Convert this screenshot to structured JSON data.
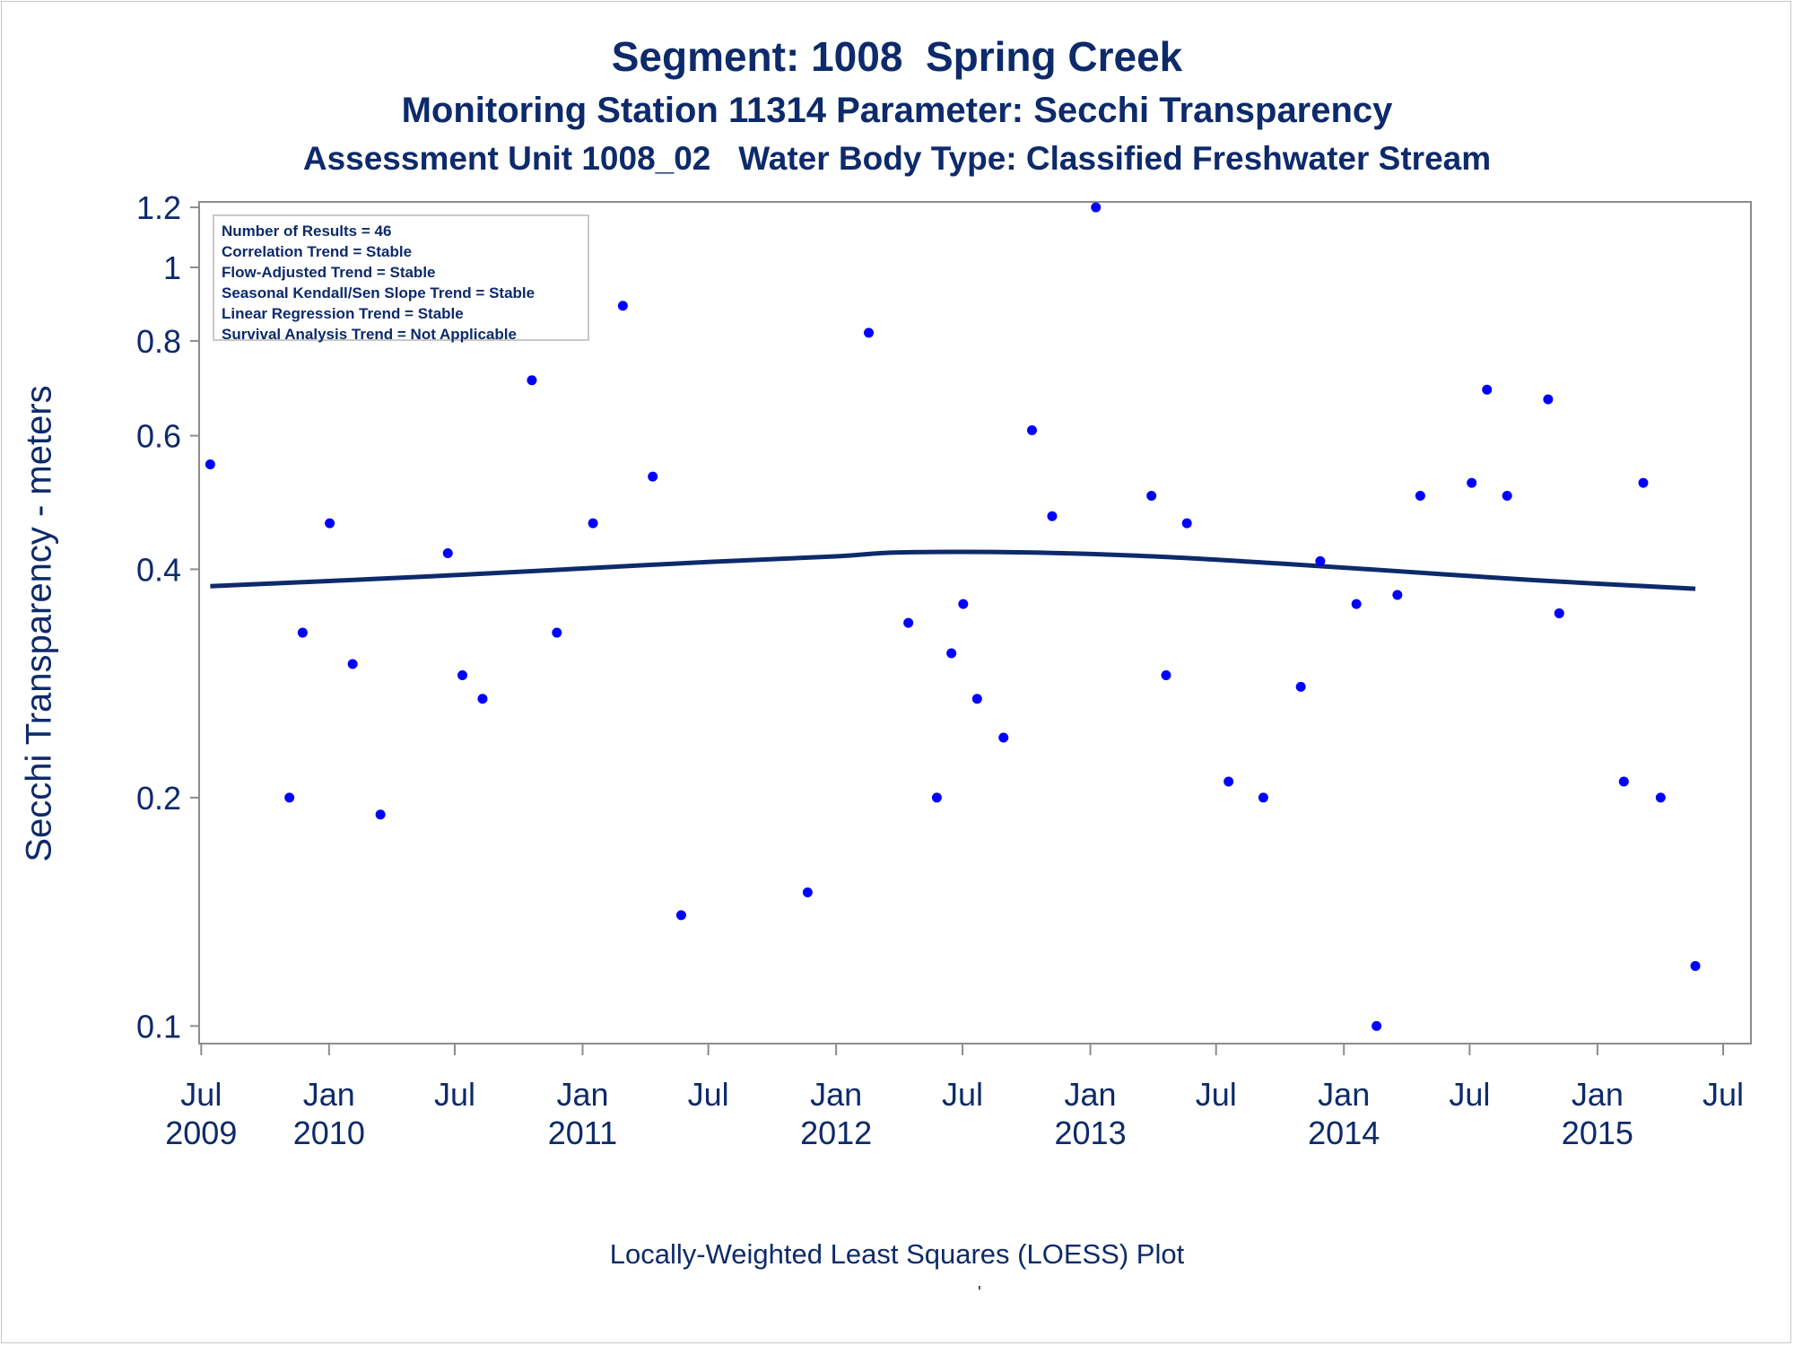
{
  "titles": {
    "line1": "Segment: 1008  Spring Creek",
    "line2": "Monitoring Station 11314 Parameter: Secchi Transparency",
    "line3": "Assessment Unit 1008_02   Water Body Type: Classified Freshwater Stream"
  },
  "footnote": "Locally-Weighted Least Squares (LOESS) Plot",
  "footnote_mark": "'",
  "stats": [
    "Number of Results = 46",
    "Correlation Trend = Stable",
    "Flow-Adjusted Trend = Stable",
    "Seasonal Kendall/Sen Slope Trend = Stable",
    "Linear Regression Trend = Stable",
    "Survival Analysis Trend = Not Applicable"
  ],
  "colors": {
    "text": "#0d2a6b",
    "points": "#0000ff",
    "loess": "#0d2a6b",
    "axis": "#8c8c8c"
  },
  "chart_data": {
    "type": "scatter",
    "ylabel": "Secchi Transparency - meters",
    "yscale": "log",
    "ylim": [
      0.0948,
      1.22
    ],
    "xlim": [
      "2009-06-28",
      "2015-08-10"
    ],
    "yticks": [
      0.1,
      0.2,
      0.4,
      0.6,
      0.8,
      1,
      1.2
    ],
    "ytick_labels": [
      "0.1",
      "0.2",
      "0.4",
      "0.6",
      "0.8",
      "1",
      "1.2"
    ],
    "xticks": [
      "2009-07-01",
      "2010-01-01",
      "2010-07-01",
      "2011-01-01",
      "2011-07-01",
      "2012-01-01",
      "2012-07-01",
      "2013-01-01",
      "2013-07-01",
      "2014-01-01",
      "2014-07-01",
      "2015-01-01",
      "2015-07-01"
    ],
    "xtick_labels": [
      [
        "Jul",
        "2009"
      ],
      [
        "Jan",
        "2010"
      ],
      [
        "Jul",
        ""
      ],
      [
        "Jan",
        "2011"
      ],
      [
        "Jul",
        ""
      ],
      [
        "Jan",
        "2012"
      ],
      [
        "Jul",
        ""
      ],
      [
        "Jan",
        "2013"
      ],
      [
        "Jul",
        ""
      ],
      [
        "Jan",
        "2014"
      ],
      [
        "Jul",
        ""
      ],
      [
        "Jan",
        "2015"
      ],
      [
        "Jul",
        ""
      ]
    ],
    "points": [
      {
        "date": "2009-07-14",
        "value": 0.55
      },
      {
        "date": "2009-11-05",
        "value": 0.2
      },
      {
        "date": "2009-11-24",
        "value": 0.33
      },
      {
        "date": "2010-01-02",
        "value": 0.46
      },
      {
        "date": "2010-02-04",
        "value": 0.3
      },
      {
        "date": "2010-03-16",
        "value": 0.19
      },
      {
        "date": "2010-06-21",
        "value": 0.42
      },
      {
        "date": "2010-07-12",
        "value": 0.29
      },
      {
        "date": "2010-08-10",
        "value": 0.27
      },
      {
        "date": "2010-10-20",
        "value": 0.71
      },
      {
        "date": "2010-11-25",
        "value": 0.33
      },
      {
        "date": "2011-01-16",
        "value": 0.46
      },
      {
        "date": "2011-02-28",
        "value": 0.89
      },
      {
        "date": "2011-04-12",
        "value": 0.53
      },
      {
        "date": "2011-05-23",
        "value": 0.14
      },
      {
        "date": "2011-11-21",
        "value": 0.15
      },
      {
        "date": "2012-02-17",
        "value": 0.82
      },
      {
        "date": "2012-04-14",
        "value": 0.34
      },
      {
        "date": "2012-05-25",
        "value": 0.2
      },
      {
        "date": "2012-06-15",
        "value": 0.31
      },
      {
        "date": "2012-07-02",
        "value": 0.36
      },
      {
        "date": "2012-07-22",
        "value": 0.27
      },
      {
        "date": "2012-08-29",
        "value": 0.24
      },
      {
        "date": "2012-10-09",
        "value": 0.61
      },
      {
        "date": "2012-11-07",
        "value": 0.47
      },
      {
        "date": "2013-01-09",
        "value": 1.2
      },
      {
        "date": "2013-03-30",
        "value": 0.5
      },
      {
        "date": "2013-04-20",
        "value": 0.29
      },
      {
        "date": "2013-05-20",
        "value": 0.46
      },
      {
        "date": "2013-07-19",
        "value": 0.21
      },
      {
        "date": "2013-09-07",
        "value": 0.2
      },
      {
        "date": "2013-10-31",
        "value": 0.28
      },
      {
        "date": "2013-11-28",
        "value": 0.41
      },
      {
        "date": "2014-01-19",
        "value": 0.36
      },
      {
        "date": "2014-02-17",
        "value": 0.1
      },
      {
        "date": "2014-03-19",
        "value": 0.37
      },
      {
        "date": "2014-04-21",
        "value": 0.5
      },
      {
        "date": "2014-07-04",
        "value": 0.52
      },
      {
        "date": "2014-07-26",
        "value": 0.69
      },
      {
        "date": "2014-08-24",
        "value": 0.5
      },
      {
        "date": "2014-10-22",
        "value": 0.67
      },
      {
        "date": "2014-11-07",
        "value": 0.35
      },
      {
        "date": "2015-02-08",
        "value": 0.21
      },
      {
        "date": "2015-03-08",
        "value": 0.52
      },
      {
        "date": "2015-04-02",
        "value": 0.2
      },
      {
        "date": "2015-05-22",
        "value": 0.12
      }
    ],
    "loess": [
      {
        "date": "2009-07-14",
        "value": 0.38
      },
      {
        "date": "2010-01-01",
        "value": 0.386
      },
      {
        "date": "2010-07-01",
        "value": 0.393
      },
      {
        "date": "2011-01-01",
        "value": 0.401
      },
      {
        "date": "2011-07-01",
        "value": 0.409
      },
      {
        "date": "2012-01-01",
        "value": 0.416
      },
      {
        "date": "2012-04-01",
        "value": 0.421
      },
      {
        "date": "2012-10-01",
        "value": 0.421
      },
      {
        "date": "2013-04-01",
        "value": 0.416
      },
      {
        "date": "2013-10-01",
        "value": 0.407
      },
      {
        "date": "2014-04-01",
        "value": 0.397
      },
      {
        "date": "2014-10-01",
        "value": 0.387
      },
      {
        "date": "2015-05-22",
        "value": 0.377
      }
    ]
  }
}
